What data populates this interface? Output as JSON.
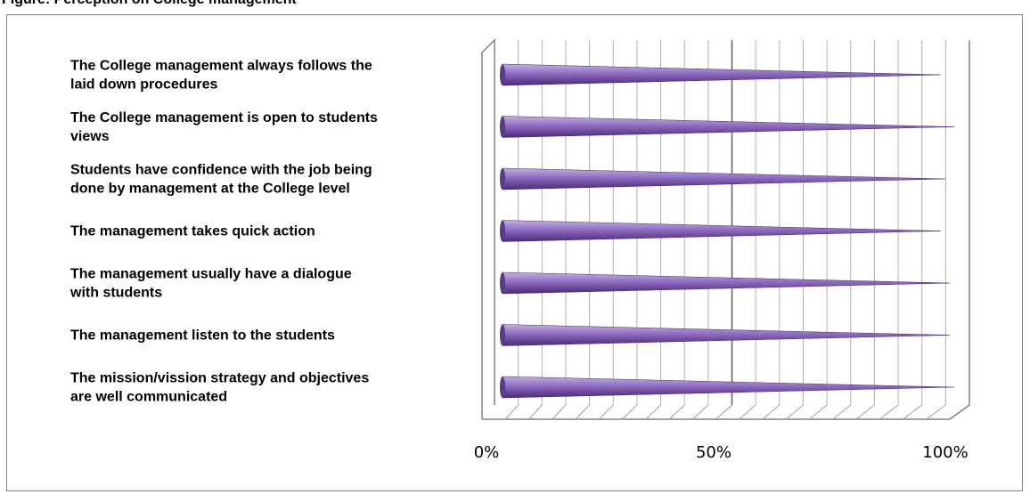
{
  "figure_caption": "Figure: Perception on College management",
  "chart_data": {
    "type": "bar",
    "orientation": "horizontal",
    "style": "3d-cone",
    "categories": [
      [
        "The College management always follows the",
        "laid down procedures"
      ],
      [
        "The College management is open to students",
        "views"
      ],
      [
        "Students have confidence with the job being",
        "done by management at the College level"
      ],
      [
        "The management takes quick action"
      ],
      [
        "The management usually have a dialogue",
        "with students"
      ],
      [
        "The management listen to the students"
      ],
      [
        "The mission/vission strategy and  objectives",
        "are well communicated"
      ]
    ],
    "series": [
      {
        "values": [
          96,
          99,
          97,
          96,
          98,
          98,
          99
        ]
      }
    ],
    "xlim": [
      0,
      100
    ],
    "x_ticks": [
      "0%",
      "50%",
      "100%"
    ],
    "grid": true,
    "colors": {
      "bar_dark": "#4b2a78",
      "bar_mid": "#8e6cc0",
      "bar_light": "#c4b0e2",
      "grid": "#808080"
    }
  }
}
